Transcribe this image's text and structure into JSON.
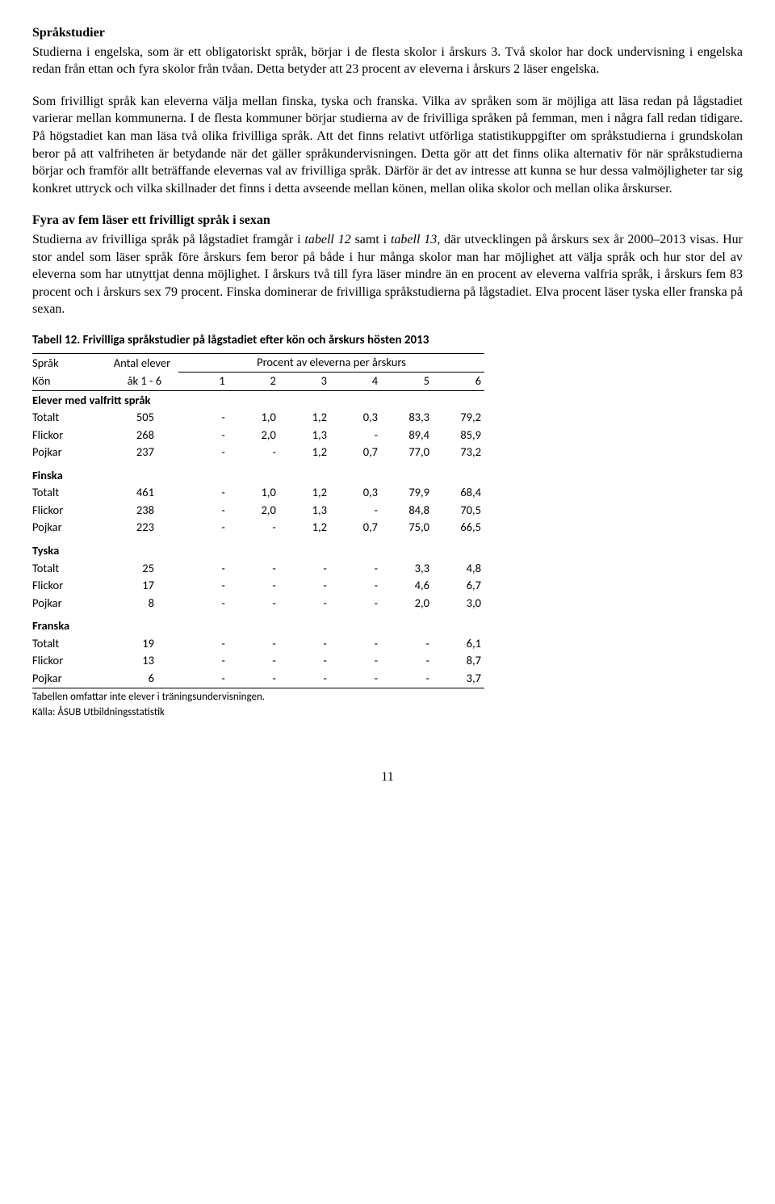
{
  "section1": {
    "title": "Språkstudier",
    "para1": "Studierna i engelska, som är ett obligatoriskt språk, börjar i de flesta skolor i årskurs 3. Två skolor har dock undervisning i engelska redan från ettan och fyra skolor från tvåan. Detta betyder att 23 procent av eleverna i årskurs 2 läser engelska.",
    "para2": "Som frivilligt språk kan eleverna välja mellan finska, tyska och franska. Vilka av språken som är möjliga att läsa redan på lågstadiet varierar mellan kommunerna. I de flesta kommuner börjar studierna av de frivilliga språken på femman, men i några fall redan tidigare. På högstadiet kan man läsa två olika frivilliga språk. Att det finns relativt utförliga statistikuppgifter om språkstudierna i grundskolan beror på att valfriheten är betydande när det gäller språkundervisningen. Detta gör att det finns olika alternativ för när språkstudierna börjar och framför allt beträffande elevernas val av frivilliga språk. Därför är det av intresse att kunna se hur dessa valmöjligheter tar sig konkret uttryck och vilka skillnader det finns i detta avseende mellan könen, mellan olika skolor och mellan olika årskurser."
  },
  "section2": {
    "title": "Fyra av fem läser ett frivilligt språk i sexan",
    "para_a": "Studierna av frivilliga språk på lågstadiet framgår i ",
    "t12": "tabell 12",
    "para_b": " samt i ",
    "t13": "tabell 13",
    "para_c": ", där utvecklingen på årskurs sex år 2000–2013 visas. Hur stor andel som läser språk före årskurs fem beror på både i hur många skolor man har möjlighet att välja språk och hur stor del av eleverna som har utnyttjat denna möjlighet. I årskurs två till fyra läser mindre än en procent av eleverna valfria språk, i årskurs fem 83 procent och i årskurs sex 79 procent. Finska dominerar de frivilliga språkstudierna på lågstadiet. Elva procent läser tyska eller franska på sexan."
  },
  "table12": {
    "caption": "Tabell 12. Frivilliga språkstudier på lågstadiet efter kön och årskurs hösten 2013",
    "col_spr": "Språk",
    "col_antal": "Antal elever",
    "col_percent": "Procent av eleverna per årskurs",
    "col_kon": "Kön",
    "col_ak": "åk 1 - 6",
    "cols": [
      "1",
      "2",
      "3",
      "4",
      "5",
      "6"
    ],
    "groups": [
      {
        "name": "Elever med valfritt språk",
        "rows": [
          {
            "label": "Totalt",
            "antal": "505",
            "v": [
              "-",
              "1,0",
              "1,2",
              "0,3",
              "83,3",
              "79,2"
            ]
          },
          {
            "label": "Flickor",
            "antal": "268",
            "v": [
              "-",
              "2,0",
              "1,3",
              "-",
              "89,4",
              "85,9"
            ]
          },
          {
            "label": "Pojkar",
            "antal": "237",
            "v": [
              "-",
              "-",
              "1,2",
              "0,7",
              "77,0",
              "73,2"
            ]
          }
        ]
      },
      {
        "name": "Finska",
        "rows": [
          {
            "label": "Totalt",
            "antal": "461",
            "v": [
              "-",
              "1,0",
              "1,2",
              "0,3",
              "79,9",
              "68,4"
            ]
          },
          {
            "label": "Flickor",
            "antal": "238",
            "v": [
              "-",
              "2,0",
              "1,3",
              "-",
              "84,8",
              "70,5"
            ]
          },
          {
            "label": "Pojkar",
            "antal": "223",
            "v": [
              "-",
              "-",
              "1,2",
              "0,7",
              "75,0",
              "66,5"
            ]
          }
        ]
      },
      {
        "name": "Tyska",
        "rows": [
          {
            "label": "Totalt",
            "antal": "25",
            "v": [
              "-",
              "-",
              "-",
              "-",
              "3,3",
              "4,8"
            ]
          },
          {
            "label": "Flickor",
            "antal": "17",
            "v": [
              "-",
              "-",
              "-",
              "-",
              "4,6",
              "6,7"
            ]
          },
          {
            "label": "Pojkar",
            "antal": "8",
            "v": [
              "-",
              "-",
              "-",
              "-",
              "2,0",
              "3,0"
            ]
          }
        ]
      },
      {
        "name": "Franska",
        "rows": [
          {
            "label": "Totalt",
            "antal": "19",
            "v": [
              "-",
              "-",
              "-",
              "-",
              "-",
              "6,1"
            ]
          },
          {
            "label": "Flickor",
            "antal": "13",
            "v": [
              "-",
              "-",
              "-",
              "-",
              "-",
              "8,7"
            ]
          },
          {
            "label": "Pojkar",
            "antal": "6",
            "v": [
              "-",
              "-",
              "-",
              "-",
              "-",
              "3,7"
            ]
          }
        ]
      }
    ],
    "note1": "Tabellen omfattar inte elever i träningsundervisningen.",
    "note2": "Källa: ÅSUB Utbildningsstatistik"
  },
  "page_number": "11"
}
